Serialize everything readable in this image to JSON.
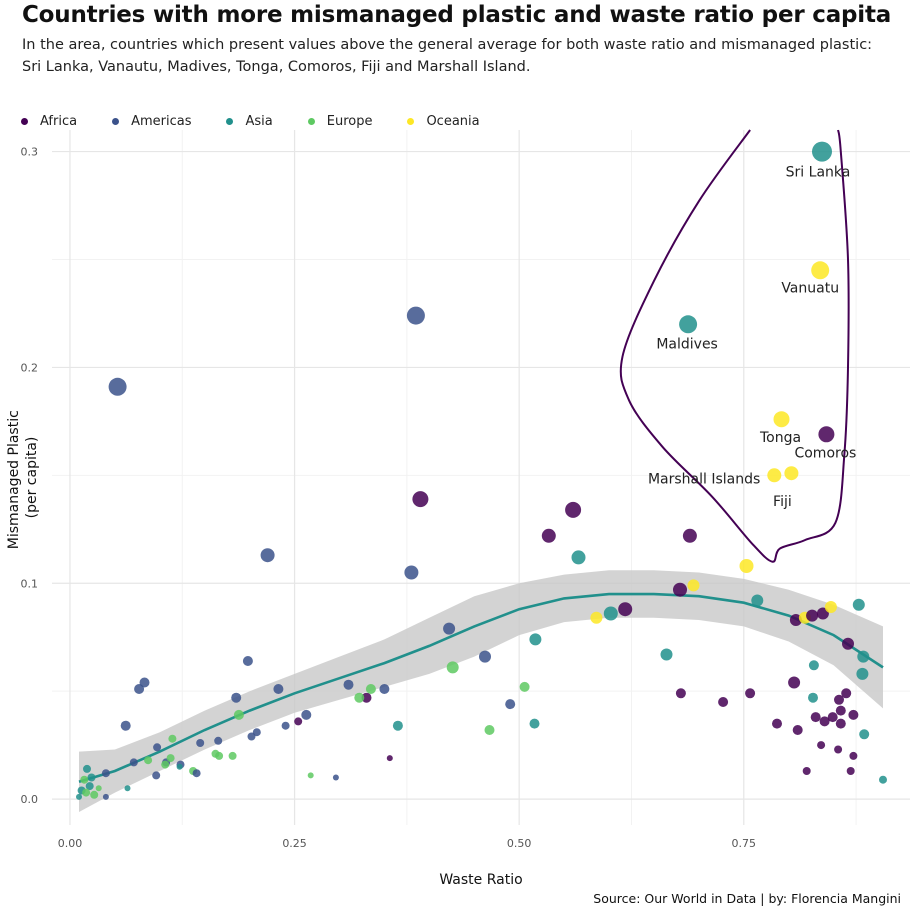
{
  "title": "Countries with more mismanaged plastic and  waste ratio per capita",
  "subtitle": "In the area, countries which present values above the general average for both waste ratio and mismanaged plastic: Sri Lanka, Vanautu, Madives, Tonga, Comoros, Fiji and Marshall Island.",
  "caption": "Source: Our World in Data | by: Florencia Mangini",
  "colors": {
    "Africa": "#440154",
    "Americas": "#3b528b",
    "Asia": "#21908c",
    "Europe": "#5ec962",
    "Oceania": "#fde725",
    "trend": "#21908c",
    "band": "#c8c8c8",
    "outline": "#440154"
  },
  "chart_data": {
    "type": "scatter",
    "xlabel": "Waste Ratio",
    "ylabel_lines": [
      "Mismanaged Plastic",
      "(per capita)"
    ],
    "xlim": [
      -0.02,
      0.935
    ],
    "ylim": [
      -0.012,
      0.31
    ],
    "x_ticks": [
      0.0,
      0.25,
      0.5,
      0.75
    ],
    "x_tick_labels": [
      "0.00",
      "0.25",
      "0.50",
      "0.75"
    ],
    "y_ticks": [
      0.0,
      0.1,
      0.2,
      0.3
    ],
    "y_tick_labels": [
      "0.0",
      "0.1",
      "0.2",
      "0.3"
    ],
    "grid": true,
    "legend_position": "top",
    "legend": [
      "Africa",
      "Americas",
      "Asia",
      "Europe",
      "Oceania"
    ],
    "points": [
      {
        "x": 0.837,
        "y": 0.3,
        "s": 10,
        "g": "Asia"
      },
      {
        "x": 0.835,
        "y": 0.245,
        "s": 9,
        "g": "Oceania"
      },
      {
        "x": 0.688,
        "y": 0.22,
        "s": 9,
        "g": "Asia"
      },
      {
        "x": 0.792,
        "y": 0.176,
        "s": 8,
        "g": "Oceania"
      },
      {
        "x": 0.842,
        "y": 0.169,
        "s": 8,
        "g": "Africa"
      },
      {
        "x": 0.784,
        "y": 0.15,
        "s": 7,
        "g": "Oceania"
      },
      {
        "x": 0.803,
        "y": 0.151,
        "s": 7,
        "g": "Oceania"
      },
      {
        "x": 0.385,
        "y": 0.224,
        "s": 9,
        "g": "Americas"
      },
      {
        "x": 0.053,
        "y": 0.191,
        "s": 9,
        "g": "Americas"
      },
      {
        "x": 0.39,
        "y": 0.139,
        "s": 8,
        "g": "Africa"
      },
      {
        "x": 0.56,
        "y": 0.134,
        "s": 8,
        "g": "Africa"
      },
      {
        "x": 0.533,
        "y": 0.122,
        "s": 7,
        "g": "Africa"
      },
      {
        "x": 0.69,
        "y": 0.122,
        "s": 7,
        "g": "Africa"
      },
      {
        "x": 0.22,
        "y": 0.113,
        "s": 7,
        "g": "Americas"
      },
      {
        "x": 0.38,
        "y": 0.105,
        "s": 7,
        "g": "Americas"
      },
      {
        "x": 0.566,
        "y": 0.112,
        "s": 7,
        "g": "Asia"
      },
      {
        "x": 0.753,
        "y": 0.108,
        "s": 7,
        "g": "Oceania"
      },
      {
        "x": 0.679,
        "y": 0.097,
        "s": 7,
        "g": "Africa"
      },
      {
        "x": 0.694,
        "y": 0.099,
        "s": 6,
        "g": "Oceania"
      },
      {
        "x": 0.618,
        "y": 0.088,
        "s": 7,
        "g": "Africa"
      },
      {
        "x": 0.602,
        "y": 0.086,
        "s": 7,
        "g": "Asia"
      },
      {
        "x": 0.586,
        "y": 0.084,
        "s": 6,
        "g": "Oceania"
      },
      {
        "x": 0.765,
        "y": 0.092,
        "s": 6,
        "g": "Asia"
      },
      {
        "x": 0.808,
        "y": 0.083,
        "s": 6,
        "g": "Africa"
      },
      {
        "x": 0.818,
        "y": 0.084,
        "s": 6,
        "g": "Oceania"
      },
      {
        "x": 0.826,
        "y": 0.085,
        "s": 6,
        "g": "Africa"
      },
      {
        "x": 0.838,
        "y": 0.086,
        "s": 6,
        "g": "Africa"
      },
      {
        "x": 0.847,
        "y": 0.089,
        "s": 6,
        "g": "Oceania"
      },
      {
        "x": 0.878,
        "y": 0.09,
        "s": 6,
        "g": "Asia"
      },
      {
        "x": 0.866,
        "y": 0.072,
        "s": 6,
        "g": "Africa"
      },
      {
        "x": 0.883,
        "y": 0.066,
        "s": 6,
        "g": "Asia"
      },
      {
        "x": 0.828,
        "y": 0.062,
        "s": 5,
        "g": "Asia"
      },
      {
        "x": 0.882,
        "y": 0.058,
        "s": 6,
        "g": "Asia"
      },
      {
        "x": 0.664,
        "y": 0.067,
        "s": 6,
        "g": "Asia"
      },
      {
        "x": 0.422,
        "y": 0.079,
        "s": 6,
        "g": "Americas"
      },
      {
        "x": 0.462,
        "y": 0.066,
        "s": 6,
        "g": "Americas"
      },
      {
        "x": 0.518,
        "y": 0.074,
        "s": 6,
        "g": "Asia"
      },
      {
        "x": 0.426,
        "y": 0.061,
        "s": 6,
        "g": "Europe"
      },
      {
        "x": 0.806,
        "y": 0.054,
        "s": 6,
        "g": "Africa"
      },
      {
        "x": 0.757,
        "y": 0.049,
        "s": 5,
        "g": "Africa"
      },
      {
        "x": 0.68,
        "y": 0.049,
        "s": 5,
        "g": "Africa"
      },
      {
        "x": 0.727,
        "y": 0.045,
        "s": 5,
        "g": "Africa"
      },
      {
        "x": 0.827,
        "y": 0.047,
        "s": 5,
        "g": "Asia"
      },
      {
        "x": 0.856,
        "y": 0.046,
        "s": 5,
        "g": "Africa"
      },
      {
        "x": 0.864,
        "y": 0.049,
        "s": 5,
        "g": "Africa"
      },
      {
        "x": 0.858,
        "y": 0.041,
        "s": 5,
        "g": "Africa"
      },
      {
        "x": 0.83,
        "y": 0.038,
        "s": 5,
        "g": "Africa"
      },
      {
        "x": 0.84,
        "y": 0.036,
        "s": 5,
        "g": "Africa"
      },
      {
        "x": 0.849,
        "y": 0.038,
        "s": 5,
        "g": "Africa"
      },
      {
        "x": 0.858,
        "y": 0.035,
        "s": 5,
        "g": "Africa"
      },
      {
        "x": 0.872,
        "y": 0.039,
        "s": 5,
        "g": "Africa"
      },
      {
        "x": 0.787,
        "y": 0.035,
        "s": 5,
        "g": "Africa"
      },
      {
        "x": 0.81,
        "y": 0.032,
        "s": 5,
        "g": "Africa"
      },
      {
        "x": 0.884,
        "y": 0.03,
        "s": 5,
        "g": "Asia"
      },
      {
        "x": 0.836,
        "y": 0.025,
        "s": 4,
        "g": "Africa"
      },
      {
        "x": 0.855,
        "y": 0.023,
        "s": 4,
        "g": "Africa"
      },
      {
        "x": 0.872,
        "y": 0.02,
        "s": 4,
        "g": "Africa"
      },
      {
        "x": 0.82,
        "y": 0.013,
        "s": 4,
        "g": "Africa"
      },
      {
        "x": 0.869,
        "y": 0.013,
        "s": 4,
        "g": "Africa"
      },
      {
        "x": 0.905,
        "y": 0.009,
        "s": 4,
        "g": "Asia"
      },
      {
        "x": 0.49,
        "y": 0.044,
        "s": 5,
        "g": "Americas"
      },
      {
        "x": 0.506,
        "y": 0.052,
        "s": 5,
        "g": "Europe"
      },
      {
        "x": 0.517,
        "y": 0.035,
        "s": 5,
        "g": "Asia"
      },
      {
        "x": 0.467,
        "y": 0.032,
        "s": 5,
        "g": "Europe"
      },
      {
        "x": 0.365,
        "y": 0.034,
        "s": 5,
        "g": "Asia"
      },
      {
        "x": 0.31,
        "y": 0.053,
        "s": 5,
        "g": "Americas"
      },
      {
        "x": 0.335,
        "y": 0.051,
        "s": 5,
        "g": "Europe"
      },
      {
        "x": 0.35,
        "y": 0.051,
        "s": 5,
        "g": "Americas"
      },
      {
        "x": 0.33,
        "y": 0.047,
        "s": 5,
        "g": "Africa"
      },
      {
        "x": 0.322,
        "y": 0.047,
        "s": 5,
        "g": "Europe"
      },
      {
        "x": 0.263,
        "y": 0.039,
        "s": 5,
        "g": "Americas"
      },
      {
        "x": 0.24,
        "y": 0.034,
        "s": 4,
        "g": "Americas"
      },
      {
        "x": 0.254,
        "y": 0.036,
        "s": 4,
        "g": "Africa"
      },
      {
        "x": 0.198,
        "y": 0.064,
        "s": 5,
        "g": "Americas"
      },
      {
        "x": 0.185,
        "y": 0.047,
        "s": 5,
        "g": "Americas"
      },
      {
        "x": 0.232,
        "y": 0.051,
        "s": 5,
        "g": "Americas"
      },
      {
        "x": 0.188,
        "y": 0.039,
        "s": 5,
        "g": "Europe"
      },
      {
        "x": 0.208,
        "y": 0.031,
        "s": 4,
        "g": "Americas"
      },
      {
        "x": 0.202,
        "y": 0.029,
        "s": 4,
        "g": "Americas"
      },
      {
        "x": 0.165,
        "y": 0.027,
        "s": 4,
        "g": "Americas"
      },
      {
        "x": 0.145,
        "y": 0.026,
        "s": 4,
        "g": "Americas"
      },
      {
        "x": 0.083,
        "y": 0.054,
        "s": 5,
        "g": "Americas"
      },
      {
        "x": 0.077,
        "y": 0.051,
        "s": 5,
        "g": "Americas"
      },
      {
        "x": 0.062,
        "y": 0.034,
        "s": 5,
        "g": "Americas"
      },
      {
        "x": 0.097,
        "y": 0.024,
        "s": 4,
        "g": "Americas"
      },
      {
        "x": 0.114,
        "y": 0.028,
        "s": 4,
        "g": "Europe"
      },
      {
        "x": 0.107,
        "y": 0.017,
        "s": 4,
        "g": "Americas"
      },
      {
        "x": 0.112,
        "y": 0.019,
        "s": 4,
        "g": "Europe"
      },
      {
        "x": 0.123,
        "y": 0.016,
        "s": 4,
        "g": "Americas"
      },
      {
        "x": 0.106,
        "y": 0.016,
        "s": 4,
        "g": "Europe"
      },
      {
        "x": 0.087,
        "y": 0.018,
        "s": 4,
        "g": "Europe"
      },
      {
        "x": 0.071,
        "y": 0.017,
        "s": 4,
        "g": "Americas"
      },
      {
        "x": 0.162,
        "y": 0.021,
        "s": 4,
        "g": "Europe"
      },
      {
        "x": 0.166,
        "y": 0.02,
        "s": 4,
        "g": "Europe"
      },
      {
        "x": 0.181,
        "y": 0.02,
        "s": 4,
        "g": "Europe"
      },
      {
        "x": 0.137,
        "y": 0.013,
        "s": 4,
        "g": "Europe"
      },
      {
        "x": 0.141,
        "y": 0.012,
        "s": 4,
        "g": "Americas"
      },
      {
        "x": 0.096,
        "y": 0.011,
        "s": 4,
        "g": "Americas"
      },
      {
        "x": 0.04,
        "y": 0.012,
        "s": 4,
        "g": "Americas"
      },
      {
        "x": 0.024,
        "y": 0.01,
        "s": 4,
        "g": "Asia"
      },
      {
        "x": 0.019,
        "y": 0.014,
        "s": 4,
        "g": "Asia"
      },
      {
        "x": 0.016,
        "y": 0.009,
        "s": 4,
        "g": "Europe"
      },
      {
        "x": 0.022,
        "y": 0.006,
        "s": 4,
        "g": "Asia"
      },
      {
        "x": 0.013,
        "y": 0.004,
        "s": 4,
        "g": "Asia"
      },
      {
        "x": 0.018,
        "y": 0.003,
        "s": 4,
        "g": "Europe"
      },
      {
        "x": 0.027,
        "y": 0.002,
        "s": 4,
        "g": "Europe"
      },
      {
        "x": 0.032,
        "y": 0.005,
        "s": 3,
        "g": "Europe"
      },
      {
        "x": 0.04,
        "y": 0.001,
        "s": 3,
        "g": "Americas"
      },
      {
        "x": 0.01,
        "y": 0.001,
        "s": 3,
        "g": "Asia"
      },
      {
        "x": 0.064,
        "y": 0.005,
        "s": 3,
        "g": "Asia"
      },
      {
        "x": 0.122,
        "y": 0.015,
        "s": 3,
        "g": "Asia"
      },
      {
        "x": 0.268,
        "y": 0.011,
        "s": 3,
        "g": "Europe"
      },
      {
        "x": 0.296,
        "y": 0.01,
        "s": 3,
        "g": "Americas"
      },
      {
        "x": 0.356,
        "y": 0.019,
        "s": 3,
        "g": "Africa"
      }
    ],
    "trend": {
      "x": [
        0.01,
        0.05,
        0.1,
        0.15,
        0.2,
        0.25,
        0.3,
        0.35,
        0.4,
        0.45,
        0.5,
        0.55,
        0.6,
        0.65,
        0.7,
        0.75,
        0.8,
        0.85,
        0.905
      ],
      "y": [
        0.008,
        0.013,
        0.022,
        0.032,
        0.041,
        0.049,
        0.056,
        0.063,
        0.071,
        0.08,
        0.088,
        0.093,
        0.095,
        0.095,
        0.094,
        0.091,
        0.085,
        0.076,
        0.061
      ],
      "lower": [
        -0.006,
        0.003,
        0.013,
        0.023,
        0.032,
        0.04,
        0.046,
        0.052,
        0.058,
        0.066,
        0.076,
        0.082,
        0.084,
        0.084,
        0.083,
        0.08,
        0.073,
        0.062,
        0.042
      ],
      "upper": [
        0.022,
        0.023,
        0.031,
        0.041,
        0.05,
        0.058,
        0.066,
        0.074,
        0.084,
        0.094,
        0.1,
        0.104,
        0.106,
        0.106,
        0.105,
        0.102,
        0.097,
        0.09,
        0.08
      ]
    },
    "highlight_outline": [
      [
        0.757,
        0.31
      ],
      [
        0.7,
        0.277
      ],
      [
        0.65,
        0.24
      ],
      [
        0.615,
        0.205
      ],
      [
        0.622,
        0.185
      ],
      [
        0.66,
        0.163
      ],
      [
        0.715,
        0.14
      ],
      [
        0.76,
        0.118
      ],
      [
        0.782,
        0.11
      ],
      [
        0.79,
        0.116
      ],
      [
        0.818,
        0.12
      ],
      [
        0.852,
        0.128
      ],
      [
        0.862,
        0.16
      ],
      [
        0.866,
        0.2
      ],
      [
        0.866,
        0.25
      ],
      [
        0.858,
        0.3
      ],
      [
        0.855,
        0.31
      ]
    ],
    "annotations": [
      {
        "text": "Sri Lanka",
        "x": 0.837,
        "y": 0.3
      },
      {
        "text": "Vanuatu",
        "x": 0.835,
        "y": 0.245
      },
      {
        "text": "Maldives",
        "x": 0.688,
        "y": 0.22
      },
      {
        "text": "Tonga",
        "x": 0.792,
        "y": 0.176
      },
      {
        "text": "Comoros",
        "x": 0.842,
        "y": 0.169
      },
      {
        "text": "Marshall Islands",
        "x": 0.784,
        "y": 0.15
      },
      {
        "text": "Fiji",
        "x": 0.803,
        "y": 0.151
      }
    ]
  }
}
